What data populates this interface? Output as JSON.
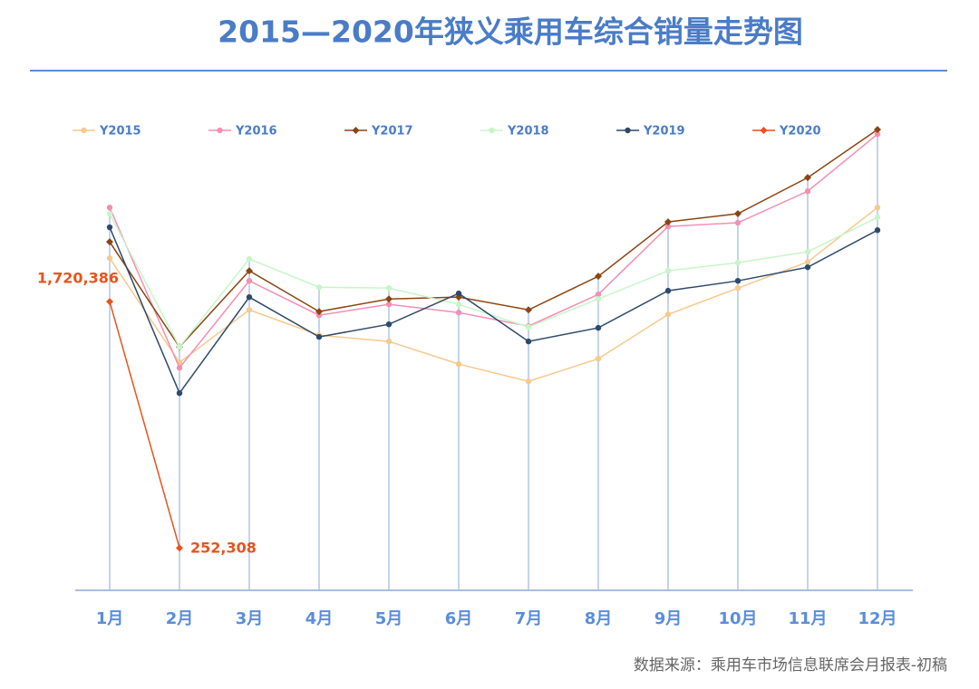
{
  "chart_data": {
    "type": "line",
    "title": "2015—2020年狭义乘用车综合销量走势图",
    "source": "数据来源：乘用车市场信息联席会月报表-初稿",
    "categories": [
      "1月",
      "2月",
      "3月",
      "4月",
      "5月",
      "6月",
      "7月",
      "8月",
      "9月",
      "10月",
      "11月",
      "12月"
    ],
    "ylim": [
      0,
      2870000
    ],
    "drop_lines": true,
    "legend": "top",
    "series": [
      {
        "name": "Y2015",
        "color": "#f7c98d",
        "marker": "circle",
        "values": [
          1979000,
          1358000,
          1671000,
          1520000,
          1483000,
          1348000,
          1245000,
          1380000,
          1644000,
          1801000,
          1957000,
          2281000
        ]
      },
      {
        "name": "Y2016",
        "color": "#f48fb1",
        "marker": "circle",
        "values": [
          2281000,
          1326000,
          1844000,
          1639000,
          1704000,
          1655000,
          1574000,
          1763000,
          2168000,
          2190000,
          2378000,
          2718000
        ]
      },
      {
        "name": "Y2017",
        "color": "#8b4513",
        "marker": "diamond",
        "values": [
          2076000,
          1450000,
          1904000,
          1661000,
          1736000,
          1747000,
          1671000,
          1871000,
          2195000,
          2244000,
          2459000,
          2745000
        ]
      },
      {
        "name": "Y2018",
        "color": "#c8f5c8",
        "marker": "circle",
        "values": [
          2244000,
          1450000,
          1974000,
          1806000,
          1801000,
          1704000,
          1569000,
          1736000,
          1904000,
          1952000,
          2017000,
          2222000
        ]
      },
      {
        "name": "Y2019",
        "color": "#2e4a6b",
        "marker": "circle",
        "values": [
          2163000,
          1175000,
          1747000,
          1510000,
          1585000,
          1769000,
          1483000,
          1564000,
          1785000,
          1844000,
          1925000,
          2146000
        ]
      },
      {
        "name": "Y2020",
        "color": "#e8541c",
        "marker": "diamond",
        "values": [
          1720386,
          252308,
          null,
          null,
          null,
          null,
          null,
          null,
          null,
          null,
          null,
          null
        ],
        "value_labels": [
          "1,720,386",
          "252,308",
          null,
          null,
          null,
          null,
          null,
          null,
          null,
          null,
          null,
          null
        ]
      }
    ]
  }
}
